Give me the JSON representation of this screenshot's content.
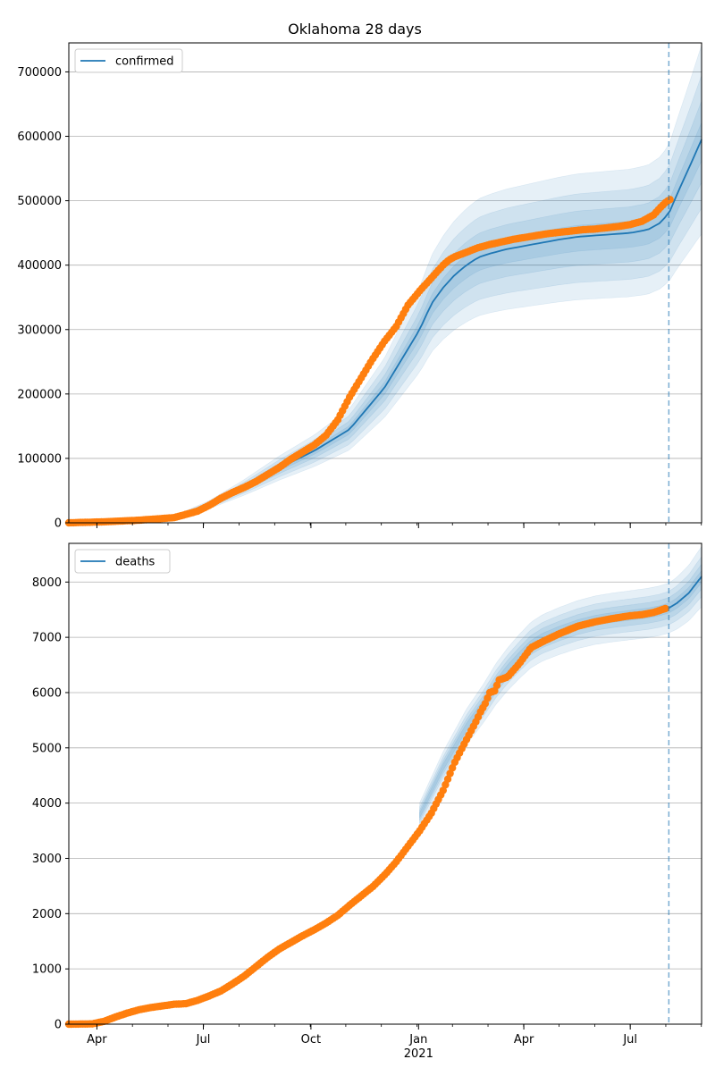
{
  "title": "Oklahoma 28 days",
  "colors": {
    "line": "#1f77b4",
    "band": "#1f77b4",
    "observed": "#ff7f0e",
    "grid": "#b0b0b0",
    "forecast_line": "#1f77b4"
  },
  "chart_data": [
    {
      "type": "line",
      "name": "confirmed",
      "legend": [
        "confirmed"
      ],
      "legend_position": "top-left",
      "grid": "horizontal",
      "x_unit": "days since 2020-03-08",
      "xlim": [
        0,
        541
      ],
      "ylim": [
        0,
        745000
      ],
      "yticks": [
        0,
        100000,
        200000,
        300000,
        400000,
        500000,
        600000,
        700000
      ],
      "xtick_labels": [],
      "forecast_start_x": 513,
      "model_line": {
        "x": [
          0,
          30,
          60,
          90,
          120,
          150,
          180,
          210,
          240,
          270,
          280,
          290,
          300,
          310,
          320,
          330,
          340,
          350,
          360,
          375,
          390,
          405,
          420,
          435,
          450,
          465,
          480,
          495,
          505,
          513,
          520,
          530,
          541
        ],
        "y": [
          0,
          1500,
          4000,
          9000,
          28000,
          55000,
          85000,
          112000,
          145000,
          210000,
          240000,
          270000,
          300000,
          340000,
          365000,
          385000,
          400000,
          412000,
          418000,
          425000,
          430000,
          435000,
          440000,
          444000,
          446000,
          448000,
          450000,
          455000,
          465000,
          480000,
          510000,
          550000,
          595000
        ]
      },
      "band_scales": [
        [
          0.78,
          1.22
        ],
        [
          0.84,
          1.15
        ],
        [
          0.9,
          1.09
        ],
        [
          0.95,
          1.04
        ]
      ],
      "observed": {
        "x": [
          0,
          30,
          60,
          90,
          100,
          110,
          120,
          130,
          140,
          150,
          160,
          170,
          180,
          190,
          200,
          210,
          220,
          230,
          240,
          250,
          260,
          270,
          280,
          290,
          300,
          305,
          310,
          315,
          320,
          325,
          330,
          340,
          350,
          360,
          370,
          380,
          390,
          400,
          410,
          420,
          430,
          440,
          450,
          460,
          470,
          480,
          490,
          500,
          505,
          510,
          515
        ],
        "y": [
          0,
          1500,
          4000,
          8000,
          13000,
          18000,
          27000,
          38000,
          47000,
          55000,
          64000,
          75000,
          86000,
          99000,
          110000,
          121000,
          136000,
          160000,
          195000,
          225000,
          255000,
          282000,
          305000,
          338000,
          360000,
          370000,
          380000,
          390000,
          400000,
          408000,
          413000,
          420000,
          427000,
          432000,
          436000,
          440000,
          443000,
          446000,
          449000,
          451000,
          453000,
          455000,
          456000,
          458000,
          460000,
          463000,
          468000,
          478000,
          488000,
          497000,
          503000
        ]
      }
    },
    {
      "type": "line",
      "name": "deaths",
      "legend": [
        "deaths"
      ],
      "legend_position": "top-left",
      "grid": "horizontal",
      "x_unit": "days since 2020-03-08",
      "xlim": [
        0,
        541
      ],
      "ylim": [
        0,
        8700
      ],
      "yticks": [
        0,
        1000,
        2000,
        3000,
        4000,
        5000,
        6000,
        7000,
        8000
      ],
      "xtick_labels": [
        "Apr",
        "Jul",
        "Oct",
        "Jan",
        "Apr",
        "Jul"
      ],
      "xtick_x": [
        24,
        115,
        207,
        299,
        389,
        480
      ],
      "year_label": "2021",
      "year_label_x": 299,
      "forecast_start_x": 513,
      "model_line": {
        "x": [
          485,
          495,
          505,
          513,
          520,
          530,
          541
        ],
        "y": [
          7420,
          7450,
          7490,
          7530,
          7620,
          7800,
          8100
        ]
      },
      "band_scales": [
        [
          0.94,
          1.06
        ],
        [
          0.96,
          1.04
        ],
        [
          0.975,
          1.025
        ],
        [
          0.988,
          1.012
        ]
      ],
      "band_line": {
        "x": [
          300,
          320,
          340,
          355,
          365,
          375,
          385,
          395,
          405,
          420,
          435,
          450,
          465,
          480,
          495,
          505,
          513,
          520,
          530,
          541
        ],
        "y": [
          3780,
          4650,
          5380,
          5820,
          6150,
          6420,
          6650,
          6860,
          6990,
          7120,
          7230,
          7310,
          7360,
          7400,
          7440,
          7480,
          7530,
          7620,
          7800,
          8100
        ]
      },
      "observed": {
        "x": [
          0,
          20,
          30,
          40,
          50,
          60,
          70,
          80,
          90,
          100,
          110,
          120,
          130,
          140,
          150,
          160,
          170,
          180,
          190,
          200,
          210,
          220,
          230,
          240,
          250,
          260,
          270,
          280,
          290,
          300,
          310,
          320,
          330,
          340,
          348,
          352,
          356,
          360,
          364,
          368,
          375,
          385,
          395,
          405,
          420,
          435,
          450,
          465,
          480,
          490,
          500,
          510
        ],
        "y": [
          0,
          5,
          50,
          130,
          200,
          260,
          300,
          330,
          360,
          370,
          430,
          510,
          600,
          730,
          870,
          1040,
          1210,
          1360,
          1480,
          1600,
          1710,
          1830,
          1970,
          2150,
          2320,
          2490,
          2700,
          2940,
          3220,
          3500,
          3820,
          4230,
          4740,
          5150,
          5470,
          5650,
          5800,
          6000,
          6030,
          6230,
          6280,
          6520,
          6810,
          6920,
          7070,
          7200,
          7280,
          7340,
          7390,
          7410,
          7450,
          7520
        ]
      }
    }
  ]
}
